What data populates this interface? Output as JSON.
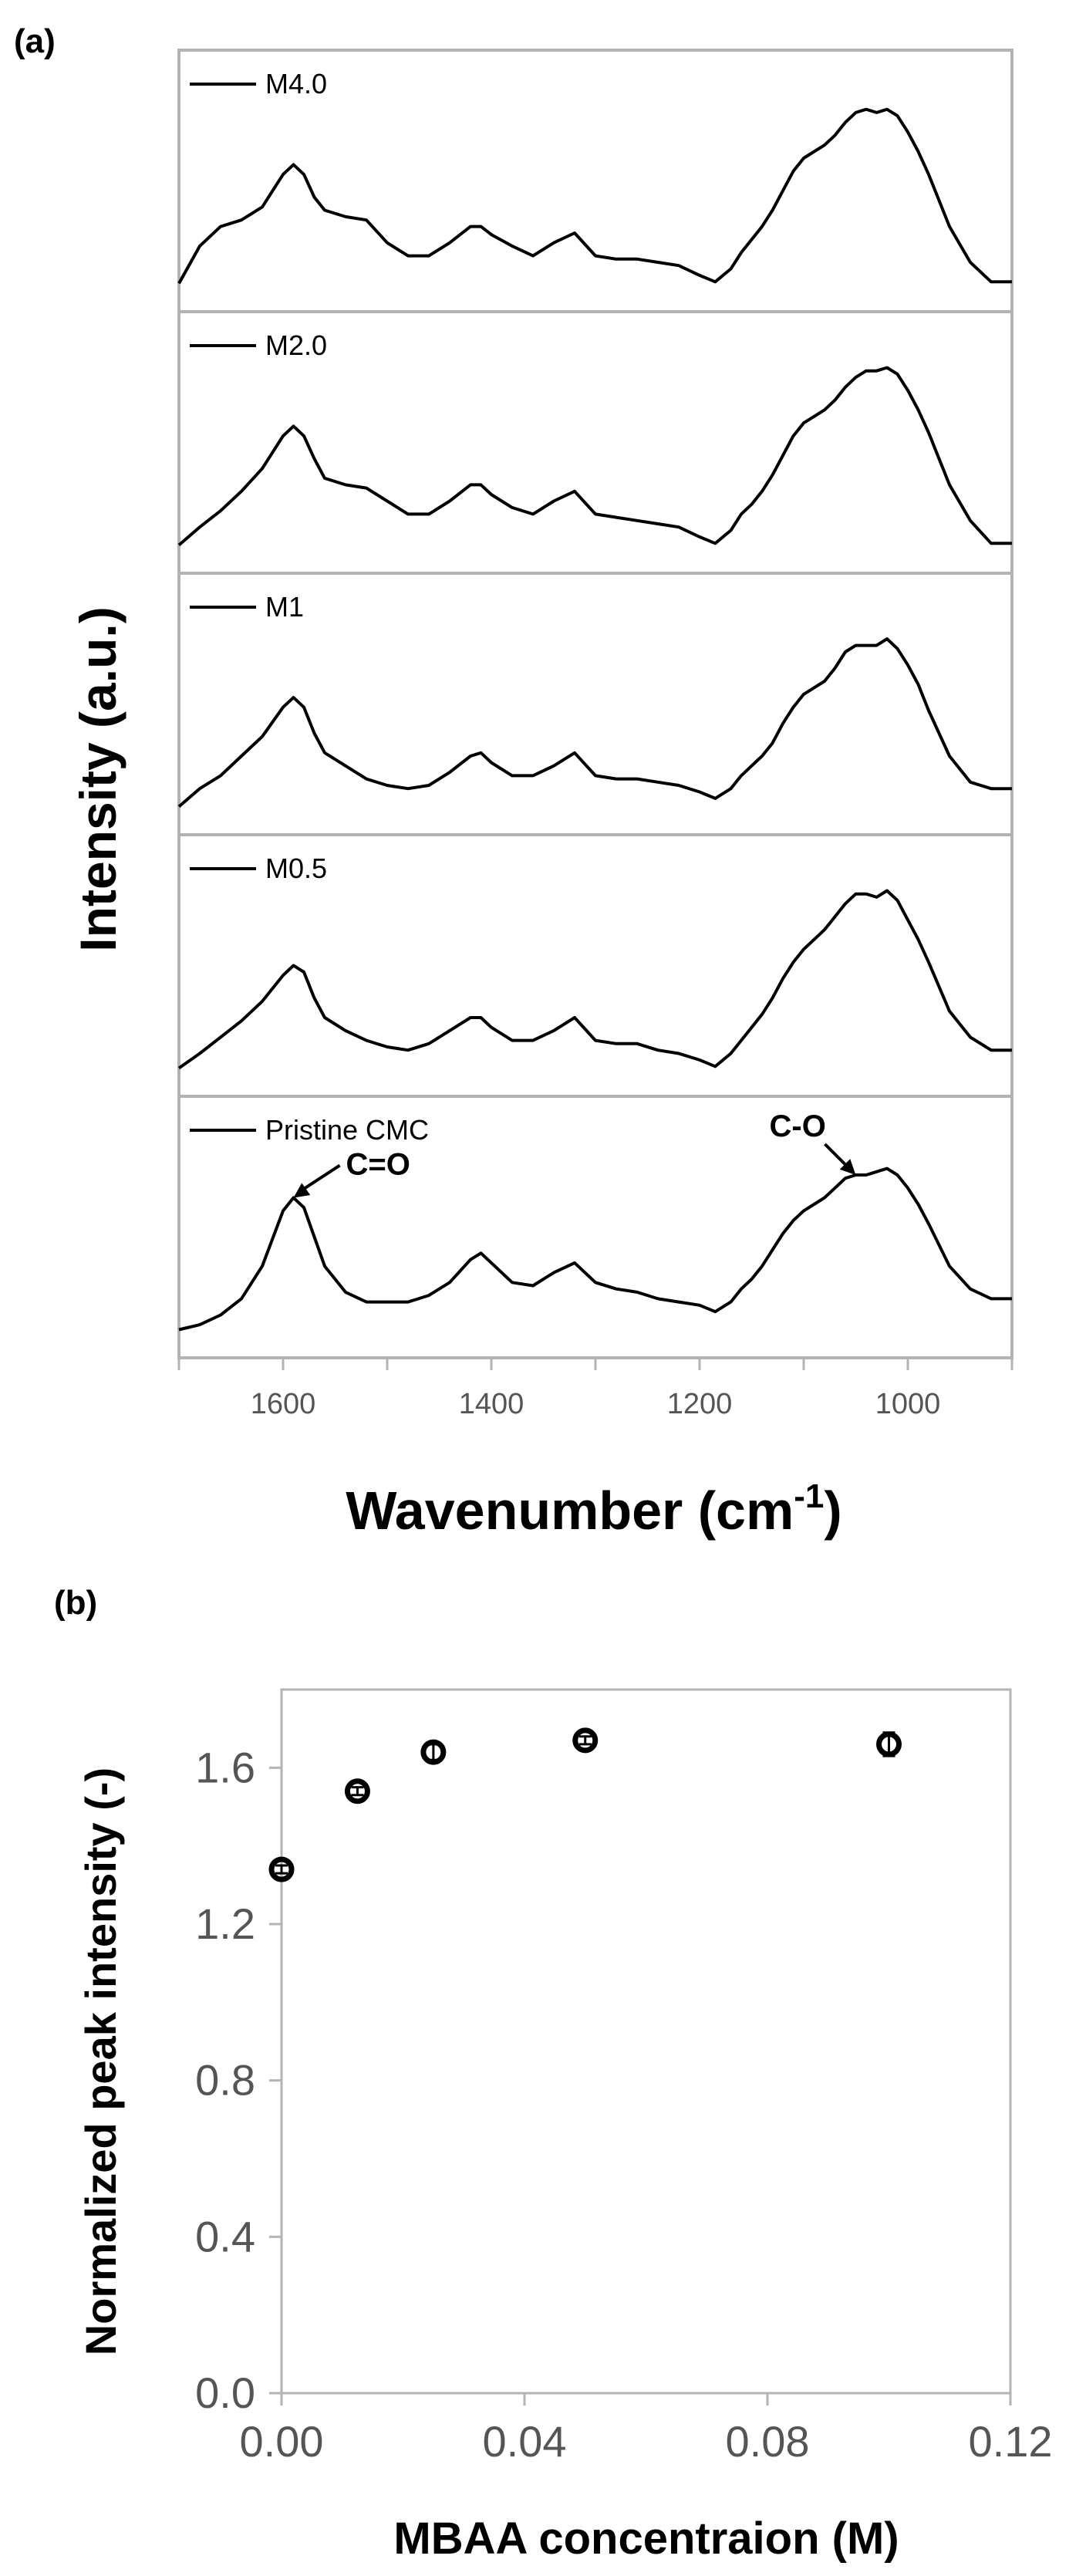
{
  "chart_data": [
    {
      "panel_label": "(a)",
      "type": "line",
      "xlabel_main": "Wavenumber (cm",
      "xlabel_sup": "-1",
      "xlabel_tail": ")",
      "ylabel": "Intensity (a.u.)",
      "xlim": [
        1700,
        900
      ],
      "x_ticks": [
        1600,
        1400,
        1200,
        1000
      ],
      "x_tick_labels": [
        "1600",
        "1400",
        "1200",
        "1000"
      ],
      "grid": false,
      "series": [
        {
          "name": "M4.0",
          "x": [
            1700,
            1680,
            1660,
            1640,
            1620,
            1600,
            1590,
            1580,
            1570,
            1560,
            1540,
            1520,
            1500,
            1480,
            1460,
            1440,
            1420,
            1410,
            1400,
            1380,
            1360,
            1340,
            1320,
            1300,
            1280,
            1260,
            1240,
            1220,
            1200,
            1185,
            1170,
            1160,
            1150,
            1140,
            1130,
            1120,
            1110,
            1100,
            1090,
            1080,
            1070,
            1060,
            1050,
            1040,
            1030,
            1020,
            1010,
            1000,
            990,
            980,
            960,
            940,
            920,
            900
          ],
          "y": [
            0.05,
            0.28,
            0.4,
            0.44,
            0.52,
            0.72,
            0.78,
            0.72,
            0.58,
            0.5,
            0.46,
            0.44,
            0.3,
            0.22,
            0.22,
            0.3,
            0.4,
            0.4,
            0.35,
            0.28,
            0.22,
            0.3,
            0.36,
            0.22,
            0.2,
            0.2,
            0.18,
            0.16,
            0.1,
            0.06,
            0.14,
            0.24,
            0.32,
            0.4,
            0.5,
            0.62,
            0.74,
            0.82,
            0.86,
            0.9,
            0.96,
            1.04,
            1.1,
            1.12,
            1.1,
            1.12,
            1.08,
            0.98,
            0.86,
            0.72,
            0.4,
            0.18,
            0.06,
            0.06
          ]
        },
        {
          "name": "M2.0",
          "x": [
            1700,
            1680,
            1660,
            1640,
            1620,
            1600,
            1590,
            1580,
            1570,
            1560,
            1540,
            1520,
            1500,
            1480,
            1460,
            1440,
            1420,
            1410,
            1400,
            1380,
            1360,
            1340,
            1320,
            1300,
            1280,
            1260,
            1240,
            1220,
            1200,
            1185,
            1170,
            1160,
            1150,
            1140,
            1130,
            1120,
            1110,
            1100,
            1090,
            1080,
            1070,
            1060,
            1050,
            1040,
            1030,
            1020,
            1010,
            1000,
            990,
            980,
            960,
            940,
            920,
            900
          ],
          "y": [
            0.05,
            0.16,
            0.26,
            0.38,
            0.52,
            0.72,
            0.78,
            0.72,
            0.58,
            0.46,
            0.42,
            0.4,
            0.32,
            0.24,
            0.24,
            0.32,
            0.42,
            0.42,
            0.36,
            0.28,
            0.24,
            0.32,
            0.38,
            0.24,
            0.22,
            0.2,
            0.18,
            0.16,
            0.1,
            0.06,
            0.14,
            0.24,
            0.3,
            0.38,
            0.48,
            0.6,
            0.72,
            0.8,
            0.84,
            0.88,
            0.94,
            1.02,
            1.08,
            1.12,
            1.12,
            1.14,
            1.1,
            1.0,
            0.88,
            0.74,
            0.42,
            0.2,
            0.06,
            0.06
          ]
        },
        {
          "name": "M1",
          "x": [
            1700,
            1680,
            1660,
            1640,
            1620,
            1600,
            1590,
            1580,
            1570,
            1560,
            1540,
            1520,
            1500,
            1480,
            1460,
            1440,
            1420,
            1410,
            1400,
            1380,
            1360,
            1340,
            1320,
            1300,
            1280,
            1260,
            1240,
            1220,
            1200,
            1185,
            1170,
            1160,
            1150,
            1140,
            1130,
            1120,
            1110,
            1100,
            1090,
            1080,
            1070,
            1060,
            1050,
            1040,
            1030,
            1020,
            1010,
            1000,
            990,
            980,
            960,
            940,
            920,
            900
          ],
          "y": [
            0.05,
            0.16,
            0.24,
            0.36,
            0.48,
            0.66,
            0.72,
            0.66,
            0.5,
            0.38,
            0.3,
            0.22,
            0.18,
            0.16,
            0.18,
            0.26,
            0.36,
            0.38,
            0.32,
            0.24,
            0.24,
            0.3,
            0.38,
            0.24,
            0.22,
            0.22,
            0.2,
            0.18,
            0.14,
            0.1,
            0.16,
            0.24,
            0.3,
            0.36,
            0.44,
            0.56,
            0.66,
            0.74,
            0.78,
            0.82,
            0.9,
            1.0,
            1.04,
            1.04,
            1.04,
            1.08,
            1.02,
            0.92,
            0.8,
            0.64,
            0.36,
            0.2,
            0.16,
            0.16
          ]
        },
        {
          "name": "M0.5",
          "x": [
            1700,
            1680,
            1660,
            1640,
            1620,
            1600,
            1590,
            1580,
            1570,
            1560,
            1540,
            1520,
            1500,
            1480,
            1460,
            1440,
            1420,
            1410,
            1400,
            1380,
            1360,
            1340,
            1320,
            1300,
            1280,
            1260,
            1240,
            1220,
            1200,
            1185,
            1170,
            1160,
            1150,
            1140,
            1130,
            1120,
            1110,
            1100,
            1090,
            1080,
            1070,
            1060,
            1050,
            1040,
            1030,
            1020,
            1010,
            1000,
            990,
            980,
            960,
            940,
            920,
            900
          ],
          "y": [
            0.05,
            0.14,
            0.24,
            0.34,
            0.46,
            0.62,
            0.68,
            0.64,
            0.48,
            0.36,
            0.28,
            0.22,
            0.18,
            0.16,
            0.2,
            0.28,
            0.36,
            0.36,
            0.3,
            0.22,
            0.22,
            0.28,
            0.36,
            0.22,
            0.2,
            0.2,
            0.16,
            0.14,
            0.1,
            0.06,
            0.14,
            0.22,
            0.3,
            0.38,
            0.48,
            0.6,
            0.7,
            0.78,
            0.84,
            0.9,
            0.98,
            1.06,
            1.12,
            1.12,
            1.1,
            1.14,
            1.08,
            0.96,
            0.84,
            0.7,
            0.4,
            0.24,
            0.16,
            0.16
          ]
        },
        {
          "name": "Pristine CMC",
          "x": [
            1700,
            1680,
            1660,
            1640,
            1620,
            1600,
            1590,
            1580,
            1570,
            1560,
            1540,
            1520,
            1500,
            1480,
            1460,
            1440,
            1420,
            1410,
            1400,
            1380,
            1360,
            1340,
            1320,
            1300,
            1280,
            1260,
            1240,
            1220,
            1200,
            1185,
            1170,
            1160,
            1150,
            1140,
            1130,
            1120,
            1110,
            1100,
            1090,
            1080,
            1070,
            1060,
            1050,
            1040,
            1030,
            1020,
            1010,
            1000,
            990,
            980,
            960,
            940,
            920,
            900
          ],
          "y": [
            0.05,
            0.08,
            0.14,
            0.24,
            0.44,
            0.78,
            0.86,
            0.8,
            0.62,
            0.44,
            0.28,
            0.22,
            0.22,
            0.22,
            0.26,
            0.34,
            0.48,
            0.52,
            0.46,
            0.34,
            0.32,
            0.4,
            0.46,
            0.34,
            0.3,
            0.28,
            0.24,
            0.22,
            0.2,
            0.16,
            0.22,
            0.3,
            0.36,
            0.44,
            0.54,
            0.64,
            0.72,
            0.78,
            0.82,
            0.86,
            0.92,
            0.98,
            1.0,
            1.0,
            1.02,
            1.04,
            1.0,
            0.92,
            0.82,
            0.7,
            0.44,
            0.3,
            0.24,
            0.24
          ]
        }
      ],
      "annotations": [
        {
          "text": "C=O",
          "series": "Pristine CMC",
          "x": 1590
        },
        {
          "text": "C-O",
          "series": "Pristine CMC",
          "x": 1050
        }
      ]
    },
    {
      "panel_label": "(b)",
      "type": "scatter",
      "xlabel": "MBAA concentraion (M)",
      "ylabel": "Normalized peak intensity (-)",
      "xlim": [
        0,
        0.12
      ],
      "ylim": [
        0,
        1.8
      ],
      "x_ticks": [
        0.0,
        0.04,
        0.08,
        0.12
      ],
      "x_tick_labels": [
        "0.00",
        "0.04",
        "0.08",
        "0.12"
      ],
      "y_ticks": [
        0.0,
        0.4,
        0.8,
        1.2,
        1.6
      ],
      "y_tick_labels": [
        "0.0",
        "0.4",
        "0.8",
        "1.2",
        "1.6"
      ],
      "grid": false,
      "x": [
        0.0,
        0.0125,
        0.025,
        0.05,
        0.1
      ],
      "y": [
        1.34,
        1.54,
        1.64,
        1.67,
        1.66
      ],
      "y_err": [
        0.01,
        0.01,
        0.02,
        0.01,
        0.03
      ]
    }
  ]
}
